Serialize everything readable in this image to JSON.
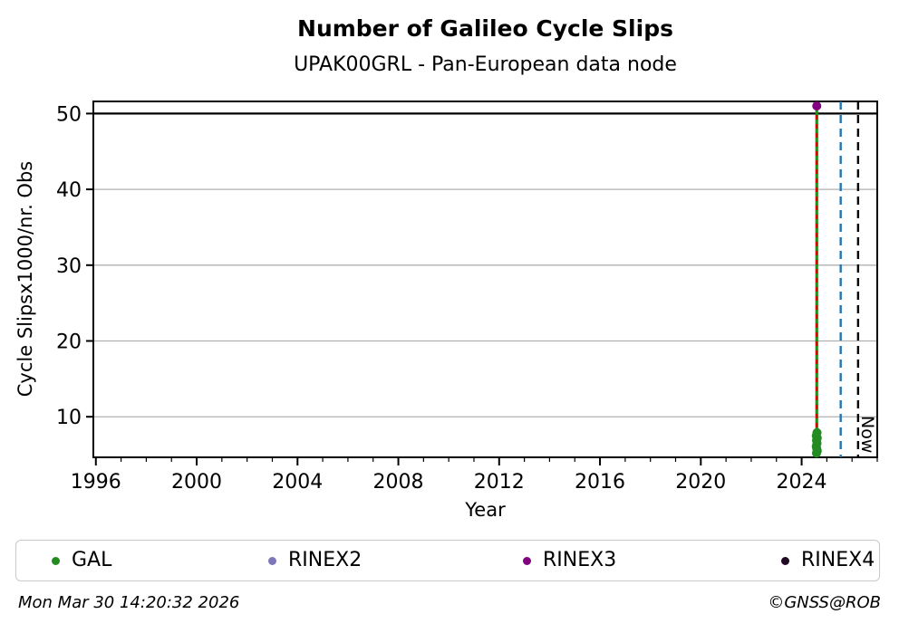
{
  "footer": {
    "left": "Mon Mar 30 14:20:32 2026",
    "right": "©GNSS@ROB"
  },
  "legend": {
    "items": [
      {
        "label": "GAL",
        "color": "#228B22"
      },
      {
        "label": "RINEX2",
        "color": "#7d76bb"
      },
      {
        "label": "RINEX3",
        "color": "#800080"
      },
      {
        "label": "RINEX4",
        "color": "#200a24"
      }
    ]
  },
  "chart_data": {
    "type": "scatter",
    "title": "Number of Galileo Cycle Slips",
    "subtitle": "UPAK00GRL - Pan-European data node",
    "xlabel": "Year",
    "ylabel": "Cycle Slipsx1000/nr. Obs",
    "xlim": [
      1995.9,
      2027.0
    ],
    "ylim": [
      4.65,
      51.6
    ],
    "xticks_major": [
      1996,
      2000,
      2004,
      2008,
      2012,
      2016,
      2020,
      2024
    ],
    "xtick_minor_step": 1,
    "yticks": [
      10,
      20,
      30,
      40,
      50
    ],
    "grid_color": "#b0b0b0",
    "threshold_line": {
      "y": 50,
      "color": "#000000"
    },
    "series": [
      {
        "name": "GAL",
        "color": "#228B22",
        "marker": "circle",
        "points": [
          [
            2024.61,
            7.9
          ],
          [
            2024.58,
            7.5
          ],
          [
            2024.62,
            7.2
          ],
          [
            2024.59,
            6.9
          ],
          [
            2024.61,
            6.5
          ],
          [
            2024.58,
            6.1
          ],
          [
            2024.6,
            5.8
          ],
          [
            2024.62,
            5.5
          ],
          [
            2024.59,
            5.2
          ]
        ]
      },
      {
        "name": "RINEX2",
        "color": "#7d76bb",
        "marker": "circle",
        "points": []
      },
      {
        "name": "RINEX3",
        "color": "#800080",
        "marker": "circle",
        "points": [
          [
            2024.6,
            51.0
          ]
        ]
      },
      {
        "name": "RINEX4",
        "color": "#200a24",
        "marker": "circle",
        "points": []
      }
    ],
    "line": {
      "x": 2024.6,
      "y_from": 5.2,
      "y_to": 51.0,
      "color": "#228B22"
    },
    "event_lines": [
      {
        "x": 2024.6,
        "color": "#dd0000",
        "dash": [
          5,
          5
        ],
        "y_from": 8.3,
        "y_to": 51.0
      },
      {
        "x": 2025.55,
        "color": "#1f77b4",
        "dash": [
          9,
          6
        ]
      },
      {
        "x": 2026.24,
        "color": "#000000",
        "dash": [
          9,
          6
        ],
        "label": "Now"
      }
    ]
  }
}
